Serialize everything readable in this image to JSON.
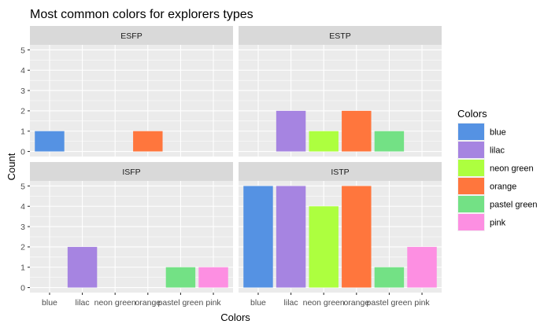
{
  "chart_data": {
    "type": "bar",
    "title": "Most common colors for explorers types",
    "xlabel": "Colors",
    "ylabel": "Count",
    "categories": [
      "blue",
      "lilac",
      "neon green",
      "orange",
      "pastel green",
      "pink"
    ],
    "colors": {
      "blue": "#5592e3",
      "lilac": "#a684e1",
      "neon green": "#adff3f",
      "orange": "#ff763d",
      "pastel green": "#73e185",
      "pink": "#fd8fe2"
    },
    "ylim": [
      0,
      5
    ],
    "y_ticks": [
      0,
      1,
      2,
      3,
      4,
      5
    ],
    "grid": true,
    "legend": {
      "title": "Colors",
      "placement": "right",
      "items": [
        "blue",
        "lilac",
        "neon green",
        "orange",
        "pastel green",
        "pink"
      ]
    },
    "facets": [
      {
        "name": "ESFP",
        "values": [
          1,
          0,
          0,
          1,
          0,
          0
        ]
      },
      {
        "name": "ESTP",
        "values": [
          0,
          2,
          1,
          2,
          1,
          0
        ]
      },
      {
        "name": "ISFP",
        "values": [
          0,
          2,
          0,
          0,
          1,
          1
        ]
      },
      {
        "name": "ISTP",
        "values": [
          5,
          5,
          4,
          5,
          1,
          2
        ]
      }
    ]
  }
}
